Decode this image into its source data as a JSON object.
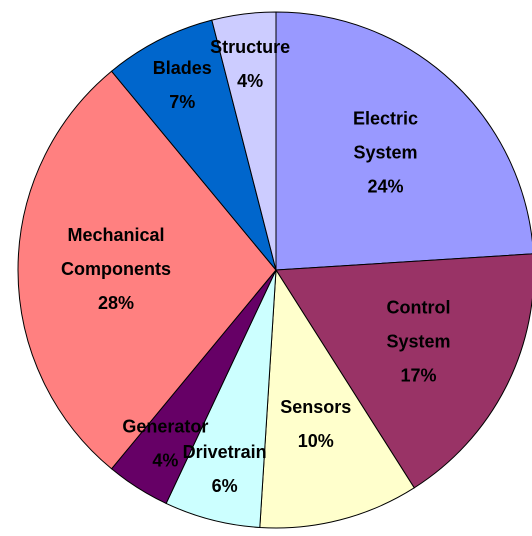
{
  "chart_data": {
    "type": "pie",
    "categories": [
      "Electric System",
      "Control System",
      "Sensors",
      "Drivetrain",
      "Generator",
      "Mechanical Components",
      "Blades",
      "Structure"
    ],
    "values": [
      24,
      17,
      10,
      6,
      4,
      28,
      7,
      4
    ],
    "value_labels": [
      "24%",
      "17%",
      "10%",
      "6%",
      "4%",
      "28%",
      "7%",
      "4%"
    ],
    "colors": [
      "#9999ff",
      "#993366",
      "#ffffcc",
      "#ccffff",
      "#660066",
      "#ff8080",
      "#0066cc",
      "#ccccff"
    ]
  }
}
